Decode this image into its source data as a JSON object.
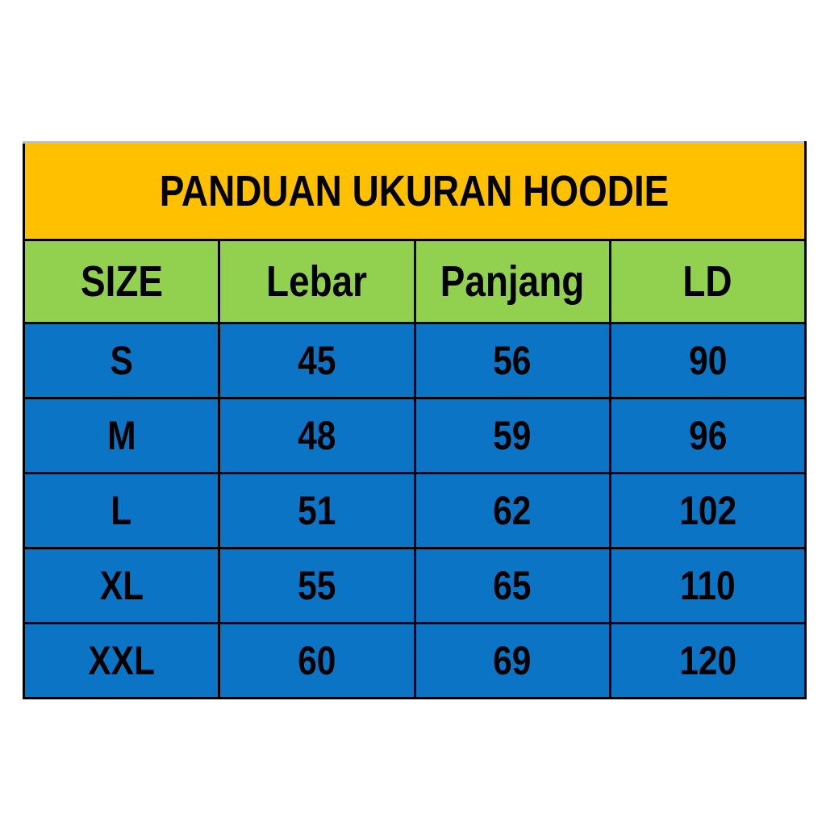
{
  "title": "PANDUAN UKURAN HOODIE",
  "table": {
    "columns": [
      "SIZE",
      "Lebar",
      "Panjang",
      "LD"
    ],
    "rows": [
      [
        "S",
        "45",
        "56",
        "90"
      ],
      [
        "M",
        "48",
        "59",
        "96"
      ],
      [
        "L",
        "51",
        "62",
        "102"
      ],
      [
        "XL",
        "55",
        "65",
        "110"
      ],
      [
        "XXL",
        "60",
        "69",
        "120"
      ]
    ]
  },
  "chart_data": {
    "type": "table",
    "title": "PANDUAN UKURAN HOODIE",
    "columns": [
      "SIZE",
      "Lebar",
      "Panjang",
      "LD"
    ],
    "rows": [
      {
        "SIZE": "S",
        "Lebar": 45,
        "Panjang": 56,
        "LD": 90
      },
      {
        "SIZE": "M",
        "Lebar": 48,
        "Panjang": 59,
        "LD": 96
      },
      {
        "SIZE": "L",
        "Lebar": 51,
        "Panjang": 62,
        "LD": 102
      },
      {
        "SIZE": "XL",
        "Lebar": 55,
        "Panjang": 65,
        "LD": 110
      },
      {
        "SIZE": "XXL",
        "Lebar": 60,
        "Panjang": 69,
        "LD": 120
      }
    ]
  },
  "colors": {
    "page_bg": "#FFFFFF",
    "title_bg": "#FFC000",
    "header_bg": "#92D050",
    "row_bg": "#0C74C4",
    "border": "#000000",
    "text": "#000000"
  }
}
